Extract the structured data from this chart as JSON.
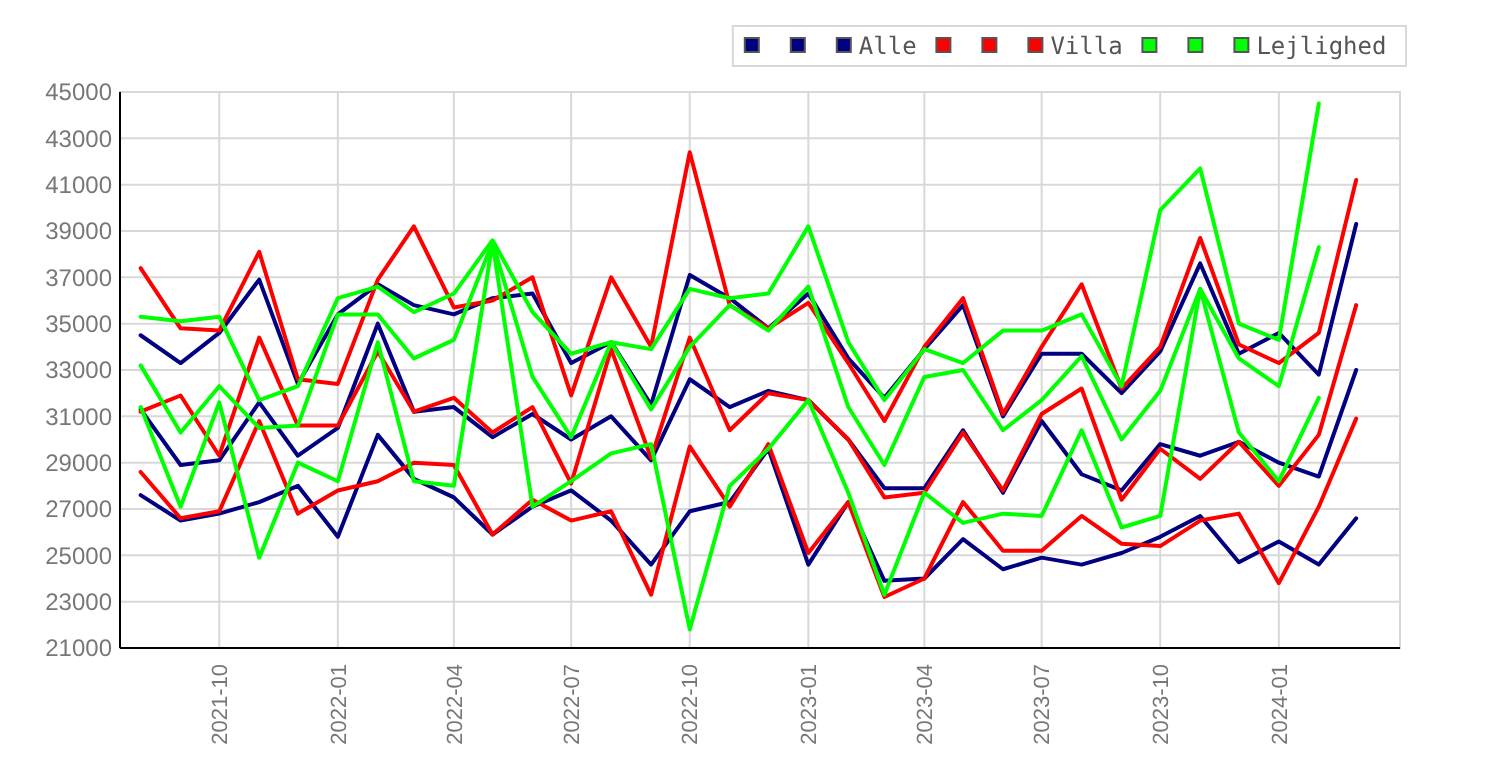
{
  "chart_data": {
    "type": "line",
    "x": [
      "2021-08",
      "2021-09",
      "2021-10",
      "2021-11",
      "2021-12",
      "2022-01",
      "2022-02",
      "2022-03",
      "2022-04",
      "2022-05",
      "2022-06",
      "2022-07",
      "2022-08",
      "2022-09",
      "2022-10",
      "2022-11",
      "2022-12",
      "2023-01",
      "2023-02",
      "2023-03",
      "2023-04",
      "2023-05",
      "2023-06",
      "2023-07",
      "2023-08",
      "2023-09",
      "2023-10",
      "2023-11",
      "2023-12",
      "2024-01",
      "2024-02",
      "2024-03"
    ],
    "xlim": [
      "2021-07-16",
      "2024-04-04"
    ],
    "xticks": [
      "2021-10",
      "2022-01",
      "2022-04",
      "2022-07",
      "2022-10",
      "2023-01",
      "2023-04",
      "2023-07",
      "2023-10",
      "2024-01"
    ],
    "ylim": [
      21000,
      45000
    ],
    "yticks": [
      21000,
      23000,
      25000,
      27000,
      29000,
      31000,
      33000,
      35000,
      37000,
      39000,
      41000,
      43000,
      45000
    ],
    "grid": true,
    "legend": "top right",
    "series": [
      {
        "color": "#000080",
        "values": [
          34500,
          33300,
          34600,
          36900,
          32400,
          35400,
          36700,
          35800,
          35400,
          36100,
          36300,
          33300,
          34200,
          31500,
          37100,
          36100,
          34800,
          36300,
          33500,
          31800,
          33900,
          35800,
          31000,
          33700,
          33700,
          32000,
          33800,
          37600,
          33700,
          34600,
          32800,
          39300
        ]
      },
      {
        "color": "#000080",
        "values": [
          31300,
          28900,
          29100,
          31600,
          29300,
          30500,
          35000,
          31200,
          31400,
          30100,
          31100,
          30000,
          31000,
          29100,
          32600,
          31400,
          32100,
          31700,
          30000,
          27900,
          27900,
          30400,
          27700,
          30800,
          28500,
          27800,
          29800,
          29300,
          29900,
          29000,
          28400,
          33000
        ]
      },
      {
        "name": "Alle",
        "color": "#000080",
        "values": [
          27600,
          26500,
          26800,
          27300,
          28000,
          25800,
          30200,
          28300,
          27500,
          25900,
          27100,
          27800,
          26500,
          24600,
          26900,
          27300,
          29600,
          24600,
          27300,
          23900,
          24000,
          25700,
          24400,
          24900,
          24600,
          25100,
          25800,
          26700,
          24700,
          25600,
          24600,
          26600
        ]
      },
      {
        "color": "#ff0000",
        "values": [
          37400,
          34800,
          34700,
          38100,
          32600,
          32400,
          36900,
          39200,
          35700,
          36000,
          37000,
          31900,
          37000,
          34000,
          42400,
          35800,
          34800,
          35900,
          33300,
          30800,
          34000,
          36100,
          31100,
          34000,
          36700,
          32200,
          34000,
          38700,
          34100,
          33300,
          34600,
          41200
        ]
      },
      {
        "color": "#ff0000",
        "values": [
          31200,
          31900,
          29300,
          34400,
          30600,
          30600,
          33800,
          31200,
          31800,
          30300,
          31400,
          28100,
          33900,
          29200,
          34400,
          30400,
          32000,
          31700,
          30000,
          27500,
          27700,
          30300,
          27800,
          31100,
          32200,
          27400,
          29600,
          28300,
          29900,
          28000,
          30200,
          35800
        ]
      },
      {
        "name": "Villa",
        "color": "#ff0000",
        "values": [
          28600,
          26600,
          26900,
          30800,
          26800,
          27800,
          28200,
          29000,
          28900,
          25900,
          27400,
          26500,
          26900,
          23300,
          29700,
          27100,
          29800,
          25100,
          27300,
          23200,
          24000,
          27300,
          25200,
          25200,
          26700,
          25500,
          25400,
          26500,
          26800,
          23800,
          27100,
          30900
        ]
      },
      {
        "color": "#00ff00",
        "values": [
          35300,
          35100,
          35300,
          31700,
          32300,
          36100,
          36600,
          35500,
          36300,
          38600,
          35500,
          33700,
          34200,
          33900,
          36500,
          36100,
          36300,
          39200,
          34200,
          31700,
          33900,
          33300,
          34700,
          34700,
          35400,
          32300,
          39900,
          41700,
          35000,
          34300,
          44500,
          null
        ]
      },
      {
        "color": "#00ff00",
        "values": [
          33200,
          30300,
          32300,
          30500,
          30600,
          35400,
          35400,
          33500,
          34300,
          38500,
          32700,
          30100,
          34200,
          31300,
          34000,
          35800,
          34700,
          36600,
          31400,
          28900,
          32700,
          33000,
          30400,
          31700,
          33600,
          30000,
          32100,
          36500,
          33500,
          32300,
          38300,
          null
        ]
      },
      {
        "name": "Lejlighed",
        "color": "#00ff00",
        "values": [
          31400,
          27100,
          31600,
          24900,
          29000,
          28200,
          34200,
          28200,
          28000,
          38500,
          27100,
          28200,
          29400,
          29800,
          21800,
          28000,
          29600,
          31700,
          27700,
          23300,
          27700,
          26400,
          26800,
          26700,
          30400,
          26200,
          26700,
          36500,
          30300,
          28200,
          31800,
          null
        ]
      }
    ]
  }
}
